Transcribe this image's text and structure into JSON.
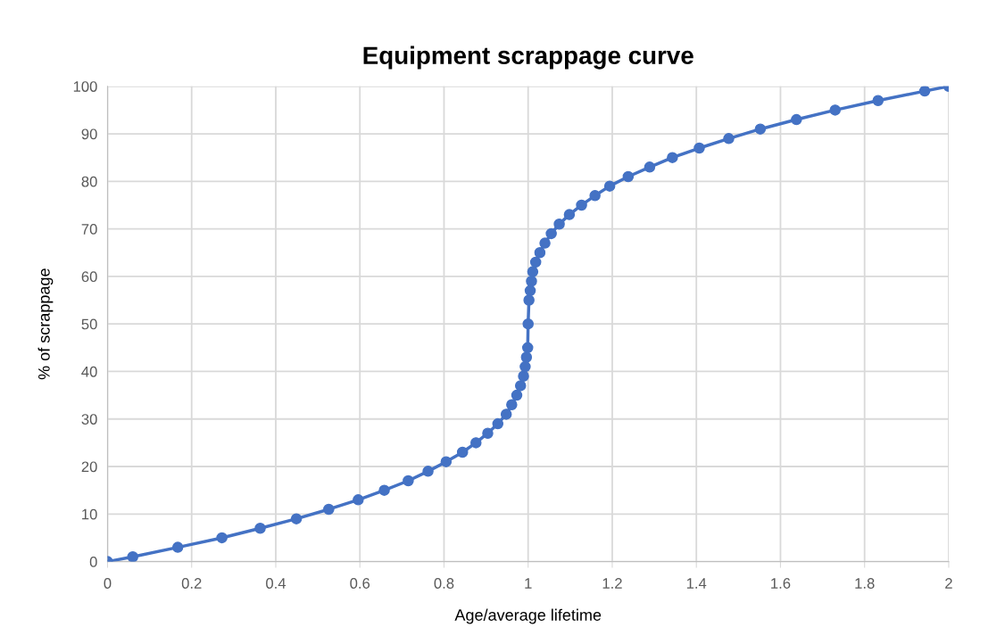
{
  "chart_data": {
    "type": "line",
    "title": "Equipment scrappage curve",
    "xlabel": "Age/average lifetime",
    "ylabel": "% of scrappage",
    "series": [
      {
        "color": "#4472c4",
        "x": [
          0,
          0.06,
          0.167,
          0.272,
          0.363,
          0.449,
          0.526,
          0.596,
          0.658,
          0.715,
          0.762,
          0.805,
          0.844,
          0.876,
          0.904,
          0.928,
          0.948,
          0.961,
          0.973,
          0.982,
          0.989,
          0.993,
          0.996,
          0.999,
          1.0,
          1.002,
          1.005,
          1.008,
          1.011,
          1.018,
          1.028,
          1.04,
          1.055,
          1.074,
          1.098,
          1.127,
          1.159,
          1.194,
          1.238,
          1.289,
          1.343,
          1.407,
          1.477,
          1.552,
          1.638,
          1.73,
          1.832,
          1.943,
          2.0
        ],
        "values": [
          0,
          1,
          3,
          5,
          7,
          9,
          11,
          13,
          15,
          17,
          19,
          21,
          23,
          25,
          27,
          29,
          31,
          33,
          35,
          37,
          39,
          41,
          43,
          45,
          50,
          55,
          57,
          59,
          61,
          63,
          65,
          67,
          69,
          71,
          73,
          75,
          77,
          79,
          81,
          83,
          85,
          87,
          89,
          91,
          93,
          95,
          97,
          99,
          100
        ]
      }
    ],
    "xlim": [
      0,
      2
    ],
    "xticks": [
      0,
      0.2,
      0.4,
      0.6,
      0.8,
      1,
      1.2,
      1.4,
      1.6,
      1.8,
      2
    ],
    "ylim": [
      0,
      100
    ],
    "yticks": [
      0,
      10,
      20,
      30,
      40,
      50,
      60,
      70,
      80,
      90,
      100
    ],
    "grid": true,
    "marker": "circle",
    "line_style": "solid",
    "legend": false
  }
}
